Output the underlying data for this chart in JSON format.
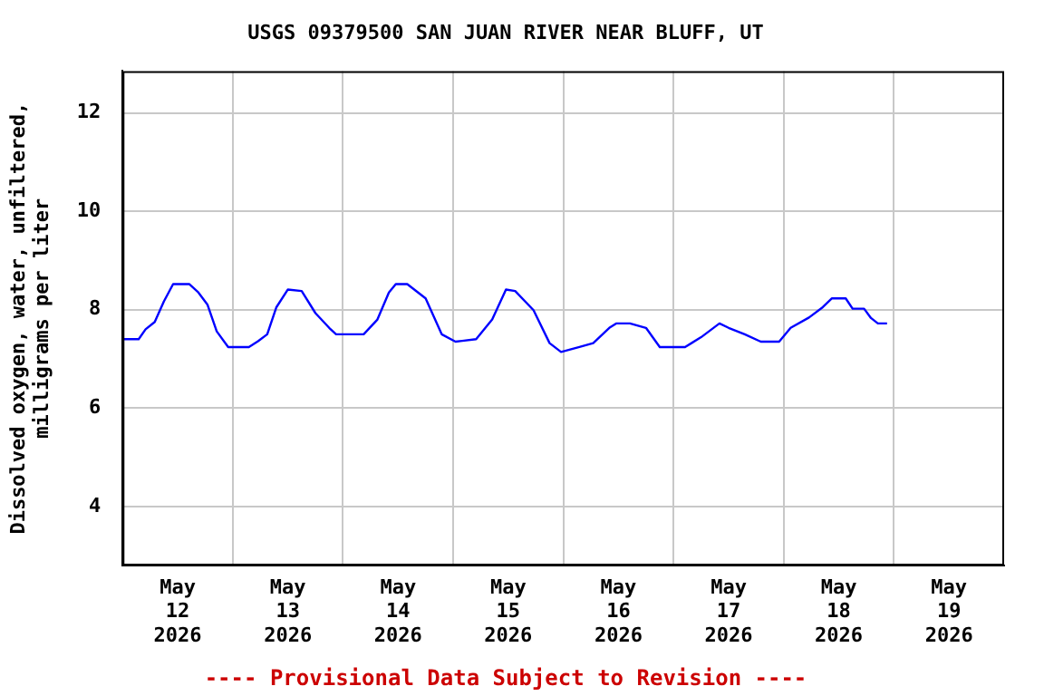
{
  "chart_data": {
    "type": "line",
    "title": "USGS 09379500 SAN JUAN RIVER NEAR BLUFF, UT",
    "ylabel": "Dissolved oxygen, water, unfiltered,\nmilligrams per liter",
    "annotations": [
      "---- Provisional Data Subject to Revision ----"
    ],
    "x": [
      "2026-05-12T00:00",
      "2026-05-12T03:30",
      "2026-05-12T05:00",
      "2026-05-12T07:00",
      "2026-05-12T09:00",
      "2026-05-12T11:00",
      "2026-05-12T14:30",
      "2026-05-12T16:30",
      "2026-05-12T18:30",
      "2026-05-12T20:30",
      "2026-05-12T23:00",
      "2026-05-13T03:30",
      "2026-05-13T05:30",
      "2026-05-13T07:30",
      "2026-05-13T09:30",
      "2026-05-13T12:00",
      "2026-05-13T15:00",
      "2026-05-13T18:00",
      "2026-05-13T21:00",
      "2026-05-13T22:30",
      "2026-05-14T04:30",
      "2026-05-14T07:30",
      "2026-05-14T10:00",
      "2026-05-14T11:30",
      "2026-05-14T14:00",
      "2026-05-14T18:00",
      "2026-05-14T21:30",
      "2026-05-15T00:30",
      "2026-05-15T05:00",
      "2026-05-15T08:30",
      "2026-05-15T11:30",
      "2026-05-15T13:30",
      "2026-05-15T17:30",
      "2026-05-15T21:00",
      "2026-05-15T23:30",
      "2026-05-16T03:30",
      "2026-05-16T06:30",
      "2026-05-16T10:00",
      "2026-05-16T11:30",
      "2026-05-16T14:30",
      "2026-05-16T18:00",
      "2026-05-16T21:00",
      "2026-05-17T02:30",
      "2026-05-17T06:00",
      "2026-05-17T10:00",
      "2026-05-17T12:00",
      "2026-05-17T15:30",
      "2026-05-17T19:00",
      "2026-05-17T23:00",
      "2026-05-18T01:30",
      "2026-05-18T05:30",
      "2026-05-18T08:30",
      "2026-05-18T10:30",
      "2026-05-18T13:30",
      "2026-05-18T15:00",
      "2026-05-18T17:30",
      "2026-05-18T19:00",
      "2026-05-18T20:30",
      "2026-05-18T22:30"
    ],
    "series": [
      {
        "color": "#0000ff",
        "values": [
          7.4,
          7.4,
          7.6,
          7.75,
          8.17,
          8.52,
          8.52,
          8.35,
          8.1,
          7.56,
          7.24,
          7.24,
          7.36,
          7.5,
          8.05,
          8.41,
          8.38,
          7.93,
          7.63,
          7.5,
          7.5,
          7.8,
          8.35,
          8.52,
          8.52,
          8.23,
          7.5,
          7.35,
          7.4,
          7.8,
          8.41,
          8.38,
          7.99,
          7.32,
          7.14,
          7.24,
          7.32,
          7.63,
          7.72,
          7.72,
          7.63,
          7.24,
          7.24,
          7.44,
          7.72,
          7.63,
          7.5,
          7.35,
          7.35,
          7.63,
          7.84,
          8.05,
          8.23,
          8.23,
          8.02,
          8.02,
          7.83,
          7.72,
          7.72
        ]
      }
    ],
    "xlim": [
      "2026-05-12",
      "2026-05-20"
    ],
    "xticks": [
      {
        "value": "2026-05-12T12:00",
        "label": "May\n12\n2026"
      },
      {
        "value": "2026-05-13",
        "label": null
      },
      {
        "value": "2026-05-13T12:00",
        "label": "May\n13\n2026"
      },
      {
        "value": "2026-05-14",
        "label": null
      },
      {
        "value": "2026-05-14T12:00",
        "label": "May\n14\n2026"
      },
      {
        "value": "2026-05-15",
        "label": null
      },
      {
        "value": "2026-05-15T12:00",
        "label": "May\n15\n2026"
      },
      {
        "value": "2026-05-16",
        "label": null
      },
      {
        "value": "2026-05-16T12:00",
        "label": "May\n16\n2026"
      },
      {
        "value": "2026-05-17",
        "label": null
      },
      {
        "value": "2026-05-17T12:00",
        "label": "May\n17\n2026"
      },
      {
        "value": "2026-05-18",
        "label": null
      },
      {
        "value": "2026-05-18T12:00",
        "label": "May\n18\n2026"
      },
      {
        "value": "2026-05-19",
        "label": null
      },
      {
        "value": "2026-05-19T12:00",
        "label": "May\n19\n2026"
      }
    ],
    "ylim": [
      2.8,
      12.85
    ],
    "yticks": [
      4,
      6,
      8,
      10,
      12
    ],
    "grid": true,
    "legend": false,
    "marker": "none",
    "line_style": "solid"
  }
}
